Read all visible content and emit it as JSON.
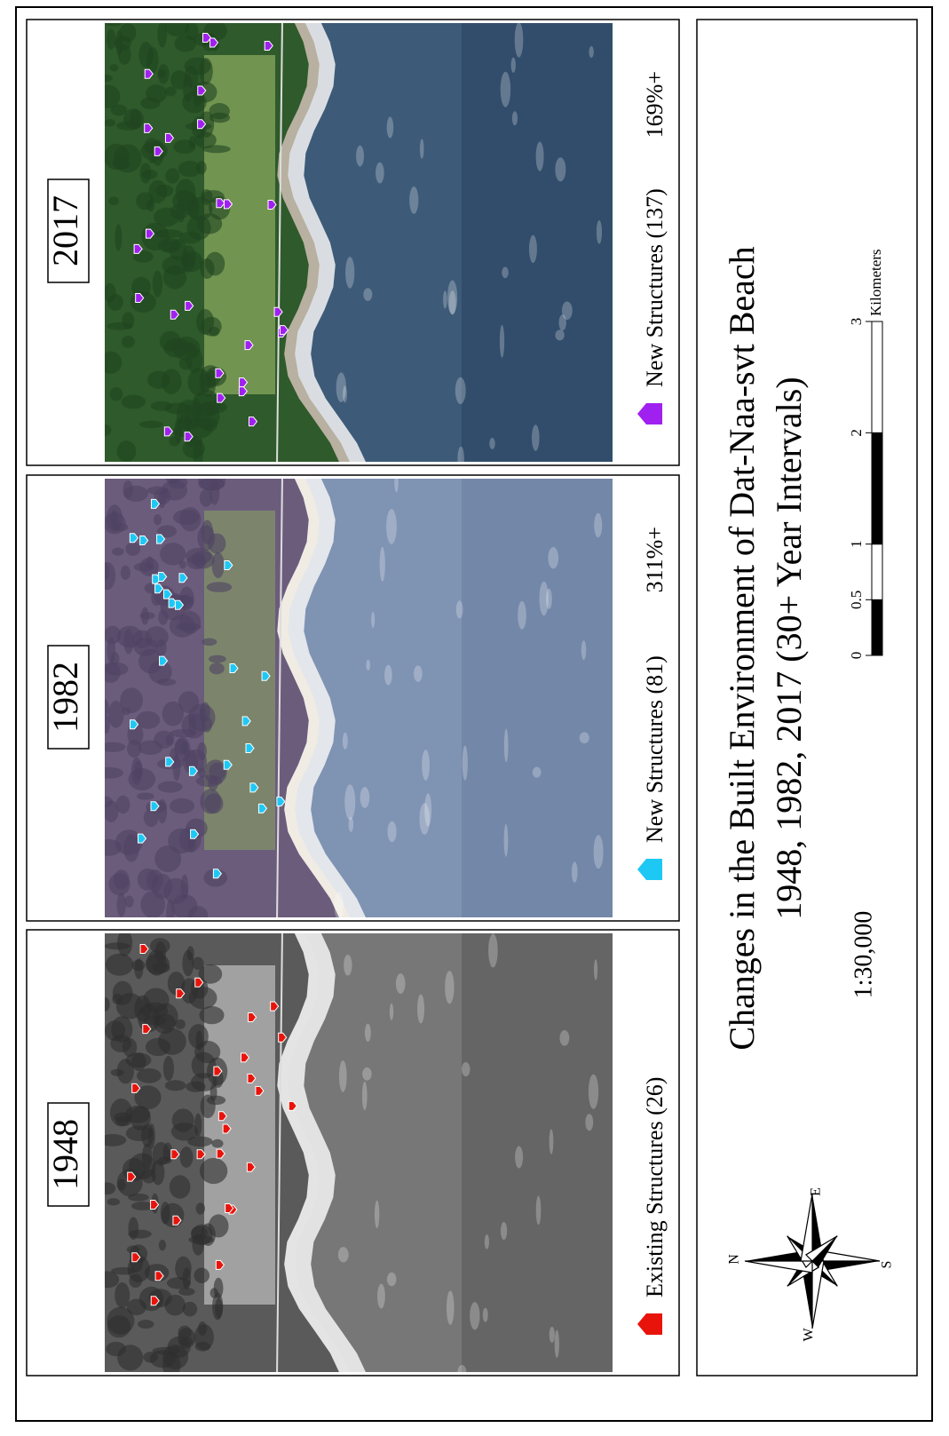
{
  "title": "Changes in the Built Environment of Dat-Naa-svt Beach",
  "subtitle": "1948, 1982, 2017 (30+ Year Intervals)",
  "scale": "1:30,000",
  "scale_bar": {
    "ticks": [
      0,
      0.5,
      1,
      2,
      3
    ],
    "unit": "Kilometers"
  },
  "compass": {
    "n": "N",
    "e": "E",
    "s": "S",
    "w": "W"
  },
  "panels": [
    {
      "year": "2017",
      "legend": "New Structures (137)",
      "change": "169%+",
      "color": "#a020f0"
    },
    {
      "year": "1982",
      "legend": "New Structures (81)",
      "change": "311%+",
      "color": "#1ec8f5"
    },
    {
      "year": "1948",
      "legend": "Existing Structures (26)",
      "color": "#e8140c"
    }
  ]
}
